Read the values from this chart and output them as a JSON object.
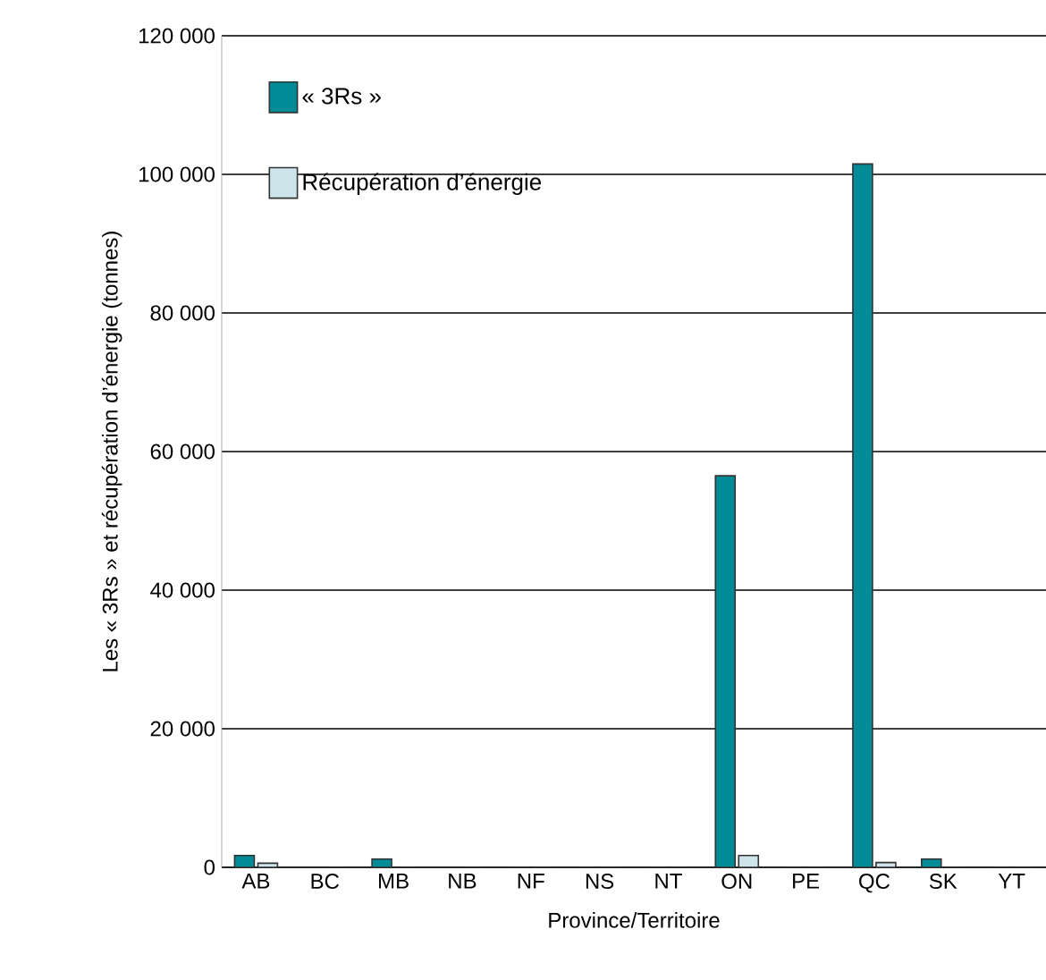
{
  "chart_data": {
    "type": "bar",
    "xlabel": "Province/Territoire",
    "ylabel": "Les « 3Rs » et récupération d’énergie (tonnes)",
    "categories": [
      "AB",
      "BC",
      "MB",
      "NB",
      "NF",
      "NS",
      "NT",
      "ON",
      "PE",
      "QC",
      "SK",
      "YT"
    ],
    "series": [
      {
        "name": "« 3Rs »",
        "color": "#008b96",
        "values": [
          1700,
          null,
          1200,
          null,
          0,
          0,
          0,
          56500,
          0,
          101500,
          1200,
          0
        ]
      },
      {
        "name": "Récupération d’énergie",
        "color": "#cde4ea",
        "values": [
          600,
          0,
          0,
          0,
          0,
          0,
          0,
          1700,
          0,
          700,
          0,
          0
        ]
      }
    ],
    "ylim": [
      0,
      120000
    ],
    "yticks": [
      {
        "value": 0,
        "label": "0"
      },
      {
        "value": 20000,
        "label": "20 000"
      },
      {
        "value": 40000,
        "label": "40 000"
      },
      {
        "value": 60000,
        "label": "60 000"
      },
      {
        "value": 80000,
        "label": "80 000"
      },
      {
        "value": 100000,
        "label": "100 000"
      },
      {
        "value": 120000,
        "label": "120 000"
      }
    ],
    "grid": "y",
    "legend": "top left"
  }
}
